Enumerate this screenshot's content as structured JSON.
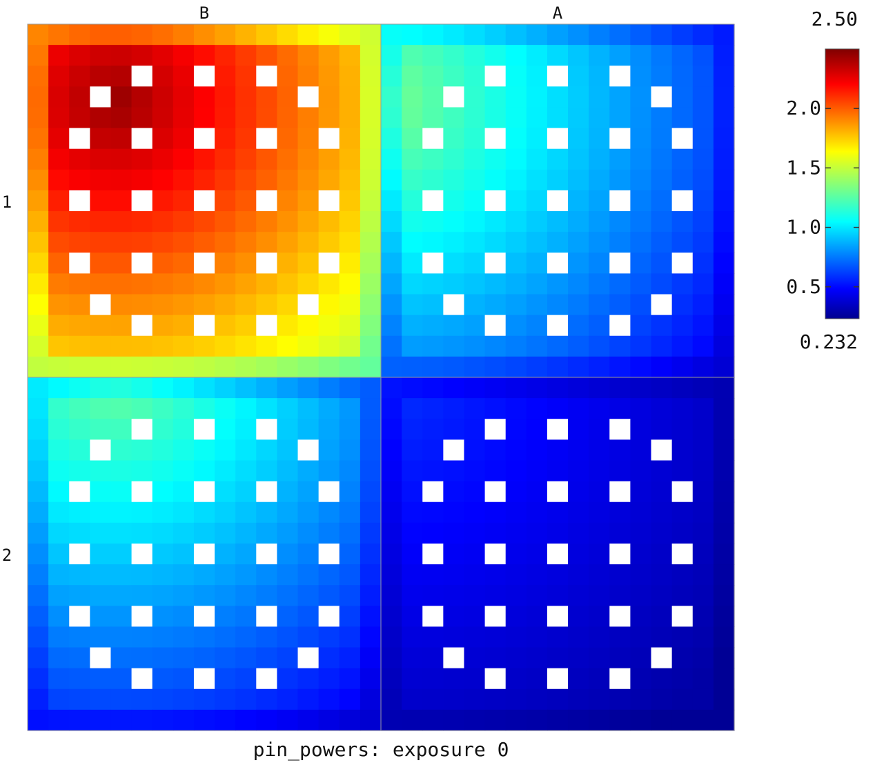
{
  "chart_data": {
    "type": "heatmap",
    "title": "pin_powers: exposure 0",
    "column_labels": [
      "B",
      "A"
    ],
    "row_labels": [
      "1",
      "2"
    ],
    "colorbar": {
      "max_label": "2.50",
      "min_label": "0.232",
      "min": 0.232,
      "max": 2.5,
      "ticks": [
        "2.0",
        "1.5",
        "1.0",
        "0.5"
      ],
      "tick_values": [
        2.0,
        1.5,
        1.0,
        0.5
      ],
      "colormap": "jet"
    },
    "grid_size": 17,
    "guide_tube_positions": [
      [
        2,
        5
      ],
      [
        2,
        8
      ],
      [
        2,
        11
      ],
      [
        3,
        3
      ],
      [
        3,
        13
      ],
      [
        5,
        2
      ],
      [
        5,
        5
      ],
      [
        5,
        8
      ],
      [
        5,
        11
      ],
      [
        5,
        14
      ],
      [
        8,
        2
      ],
      [
        8,
        5
      ],
      [
        8,
        8
      ],
      [
        8,
        11
      ],
      [
        8,
        14
      ],
      [
        11,
        2
      ],
      [
        11,
        5
      ],
      [
        11,
        8
      ],
      [
        11,
        11
      ],
      [
        11,
        14
      ],
      [
        13,
        3
      ],
      [
        13,
        13
      ],
      [
        14,
        5
      ],
      [
        14,
        8
      ],
      [
        14,
        11
      ]
    ],
    "assemblies": [
      {
        "row": "1",
        "col": "B",
        "quadrant": "top-left",
        "corner_value": 2.45,
        "far_value": 1.25
      },
      {
        "row": "1",
        "col": "A",
        "quadrant": "top-right",
        "corner_value": 1.35,
        "far_value": 0.42
      },
      {
        "row": "2",
        "col": "B",
        "quadrant": "bottom-left",
        "corner_value": 1.3,
        "far_value": 0.4
      },
      {
        "row": "2",
        "col": "A",
        "quadrant": "bottom-right",
        "corner_value": 0.6,
        "far_value": 0.28
      }
    ]
  }
}
